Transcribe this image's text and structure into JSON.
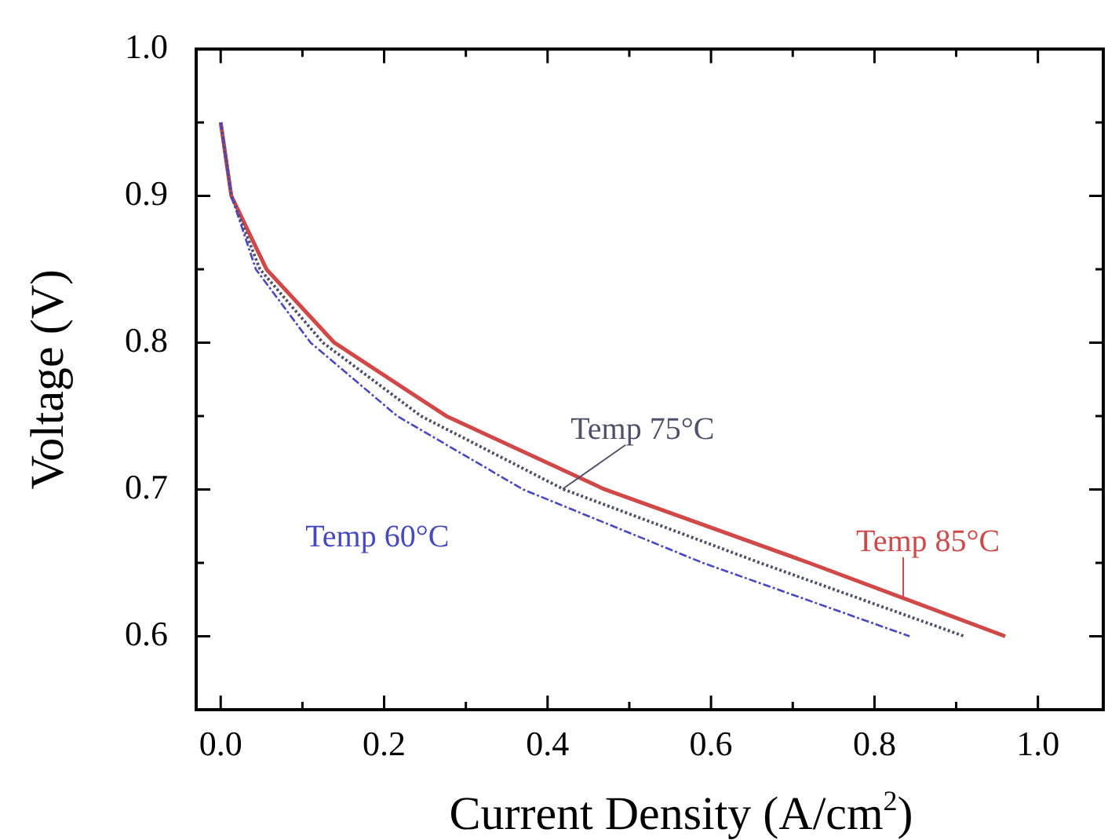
{
  "chart_data": {
    "type": "line",
    "xlabel": "Current Density (A/cm$^{2}$)",
    "ylabel": "Voltage (V)",
    "xlim": [
      -0.03,
      1.08
    ],
    "ylim": [
      0.55,
      1.0
    ],
    "xticks": [
      {
        "value": 0,
        "label": "0.0"
      },
      {
        "value": 0.1,
        "label": null
      },
      {
        "value": 0.2,
        "label": "0.2"
      },
      {
        "value": 0.3,
        "label": null
      },
      {
        "value": 0.4,
        "label": "0.4"
      },
      {
        "value": 0.5,
        "label": null
      },
      {
        "value": 0.6,
        "label": "0.6"
      },
      {
        "value": 0.7,
        "label": null
      },
      {
        "value": 0.8,
        "label": "0.8"
      },
      {
        "value": 0.9,
        "label": null
      },
      {
        "value": 1,
        "label": "1.0"
      }
    ],
    "yticks": [
      {
        "value": 0.6,
        "label": "0.6"
      },
      {
        "value": 0.65,
        "label": null
      },
      {
        "value": 0.7,
        "label": "0.7"
      },
      {
        "value": 0.75,
        "label": null
      },
      {
        "value": 0.8,
        "label": "0.8"
      },
      {
        "value": 0.85,
        "label": null
      },
      {
        "value": 0.9,
        "label": "0.9"
      },
      {
        "value": 0.95,
        "label": null
      },
      {
        "value": 1,
        "label": "1.0"
      }
    ],
    "grid": false,
    "legend": false,
    "marker": "none",
    "series": [
      {
        "name": "Temp 85°C",
        "color": "#d04848",
        "line_style": "solid",
        "x": [
          0,
          0.013,
          0.056,
          0.139,
          0.276,
          0.47,
          0.72,
          0.96
        ],
        "values": [
          0.95,
          0.9,
          0.85,
          0.8,
          0.75,
          0.7,
          0.65,
          0.6
        ]
      },
      {
        "name": "Temp 75°C",
        "color": "#50506a",
        "line_style": "dotted",
        "x": [
          0,
          0.013,
          0.048,
          0.125,
          0.245,
          0.42,
          0.66,
          0.91
        ],
        "values": [
          0.95,
          0.9,
          0.85,
          0.8,
          0.75,
          0.7,
          0.65,
          0.6
        ]
      },
      {
        "name": "Temp 60°C",
        "color": "#4848c0",
        "line_style": "dashed",
        "x": [
          0,
          0.013,
          0.043,
          0.11,
          0.216,
          0.37,
          0.59,
          0.843
        ],
        "values": [
          0.95,
          0.9,
          0.85,
          0.8,
          0.75,
          0.7,
          0.65,
          0.6
        ]
      }
    ]
  }
}
